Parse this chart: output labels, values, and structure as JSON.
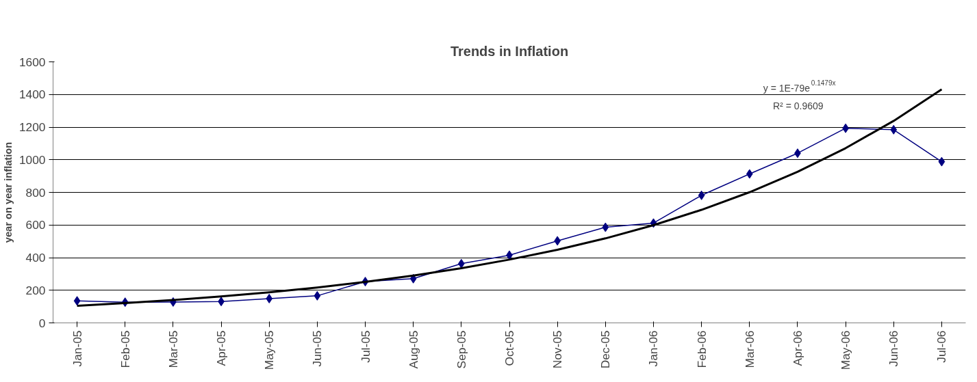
{
  "chart_data": {
    "type": "line",
    "title": "Trends in Inflation",
    "ylabel": "year on year inflation",
    "categories": [
      "Jan-05",
      "Feb-05",
      "Mar-05",
      "Apr-05",
      "May-05",
      "Jun-05",
      "Jul-05",
      "Aug-05",
      "Sep-05",
      "Oct-05",
      "Nov-05",
      "Dec-05",
      "Jan-06",
      "Feb-06",
      "Mar-06",
      "Apr-06",
      "May-06",
      "Jun-06",
      "Jul-06"
    ],
    "series": [
      {
        "color": "#000080",
        "marker": "diamond",
        "values": [
          135,
          127,
          128,
          131,
          149,
          166,
          253,
          271,
          363,
          415,
          503,
          586,
          612,
          782,
          913,
          1040,
          1193,
          1184,
          988
        ]
      },
      {
        "color": "#000000",
        "marker": "none",
        "values": [
          105,
          121,
          140,
          162,
          187,
          217,
          251,
          290,
          335,
          388,
          448,
          518,
          599,
          693,
          801,
          926,
          1071,
          1238,
          1431
        ]
      }
    ],
    "ylim": [
      0,
      1600
    ],
    "yticks": [
      0,
      200,
      400,
      600,
      800,
      1000,
      1200,
      1400,
      1600
    ],
    "grid": "y",
    "annotations": [
      "y = 1E-79e$^{0.1479x}$",
      "R² = 0.9609"
    ]
  }
}
